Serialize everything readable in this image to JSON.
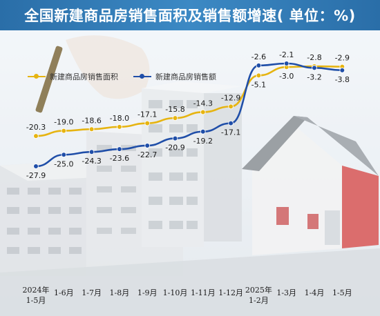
{
  "title": "全国新建商品房销售面积及销售额增速( 单位：%)",
  "colors": {
    "title_bg": "#2f78b4",
    "series_area": "#e6b411",
    "series_sales": "#1f4ea8"
  },
  "chart_data": {
    "type": "line",
    "title": "全国新建商品房销售面积及销售额增速( 单位：%)",
    "categories": [
      "2024年\n1-5月",
      "1-6月",
      "1-7月",
      "1-8月",
      "1-9月",
      "1-10月",
      "1-11月",
      "1-12月",
      "2025年\n1-2月",
      "1-3月",
      "1-4月",
      "1-5月"
    ],
    "series": [
      {
        "name": "新建商品房销售面积",
        "color": "#e6b411",
        "values": [
          -20.3,
          -19.0,
          -18.6,
          -18.0,
          -17.1,
          -15.8,
          -14.3,
          -12.9,
          -5.1,
          -3.0,
          -2.8,
          -2.9
        ],
        "labels": [
          "-20.3",
          "-19.0",
          "-18.6",
          "-18.0",
          "-17.1",
          "-15.8",
          "-14.3",
          "-12.9",
          "-5.1",
          "-3.0",
          "-2.8",
          "-2.9"
        ]
      },
      {
        "name": "新建商品房销售额",
        "color": "#1f4ea8",
        "values": [
          -27.9,
          -25.0,
          -24.3,
          -23.6,
          -22.7,
          -20.9,
          -19.2,
          -17.1,
          -2.6,
          -2.1,
          -3.2,
          -3.8
        ],
        "labels": [
          "-27.9",
          "-25.0",
          "-24.3",
          "-23.6",
          "-22.7",
          "-20.9",
          "-19.2",
          "-17.1",
          "-2.6",
          "-2.1",
          "-3.2",
          "-3.8"
        ]
      }
    ],
    "legend_position": "top-left",
    "grid": false
  }
}
